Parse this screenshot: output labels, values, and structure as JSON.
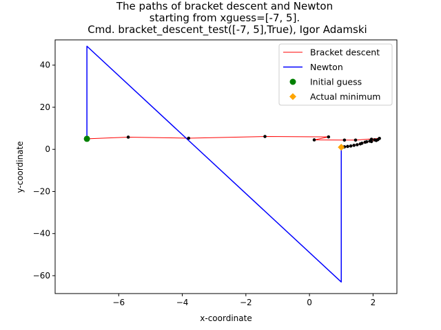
{
  "chart_data": {
    "type": "line",
    "title_lines": [
      "The paths of bracket descent and Newton",
      "starting from xguess=[-7, 5].",
      "Cmd. bracket_descent_test([-7, 5],True), Igor Adamski"
    ],
    "xlabel": "x-coordinate",
    "ylabel": "y-coordinate",
    "xlim": [
      -8.0,
      2.75
    ],
    "ylim": [
      -68.5,
      52.0
    ],
    "xticks": [
      -6,
      -4,
      -2,
      0,
      2
    ],
    "yticks": [
      -60,
      -40,
      -20,
      0,
      20,
      40
    ],
    "xtick_labels": [
      "−6",
      "−4",
      "−2",
      "0",
      "2"
    ],
    "ytick_labels": [
      "−60",
      "−40",
      "−20",
      "0",
      "20",
      "40"
    ],
    "grid": false,
    "legend_position": "top-right",
    "legend": [
      {
        "label": "Bracket descent",
        "marker": "line",
        "color": "#ff0000"
      },
      {
        "label": "Newton",
        "marker": "line",
        "color": "#0000ff"
      },
      {
        "label": "Initial guess",
        "marker": "circle",
        "color": "#008000"
      },
      {
        "label": "Actual minimum",
        "marker": "diamond",
        "color": "#ffa500"
      }
    ],
    "series": [
      {
        "name": "Bracket descent",
        "color": "#ff0000",
        "show_points": true,
        "point_color": "#000000",
        "points": [
          [
            -7.0,
            5.0
          ],
          [
            -5.7,
            5.8
          ],
          [
            -3.8,
            5.3
          ],
          [
            -1.4,
            6.1
          ],
          [
            0.6,
            5.9
          ],
          [
            0.15,
            4.5
          ],
          [
            1.1,
            4.4
          ],
          [
            1.45,
            4.4
          ],
          [
            2.2,
            5.2
          ],
          [
            2.15,
            4.6
          ],
          [
            2.05,
            4.5
          ],
          [
            1.95,
            4.8
          ],
          [
            2.1,
            4.2
          ],
          [
            1.9,
            3.9
          ],
          [
            1.95,
            3.7
          ],
          [
            1.8,
            3.6
          ],
          [
            1.75,
            3.4
          ],
          [
            1.65,
            2.9
          ],
          [
            1.6,
            2.6
          ],
          [
            1.5,
            2.2
          ],
          [
            1.4,
            1.9
          ],
          [
            1.3,
            1.6
          ],
          [
            1.2,
            1.4
          ],
          [
            1.1,
            1.2
          ],
          [
            1.05,
            1.05
          ],
          [
            1.0,
            1.0
          ]
        ]
      },
      {
        "name": "Newton",
        "color": "#0000ff",
        "show_points": false,
        "points": [
          [
            -7.0,
            5.0
          ],
          [
            -7.0,
            49.0
          ],
          [
            1.0,
            -63.0
          ],
          [
            1.0,
            1.0
          ]
        ]
      }
    ],
    "markers": [
      {
        "name": "Initial guess",
        "shape": "circle",
        "color": "#008000",
        "x": -7.0,
        "y": 5.0
      },
      {
        "name": "Actual minimum",
        "shape": "diamond",
        "color": "#ffa500",
        "x": 1.0,
        "y": 1.0
      }
    ]
  }
}
